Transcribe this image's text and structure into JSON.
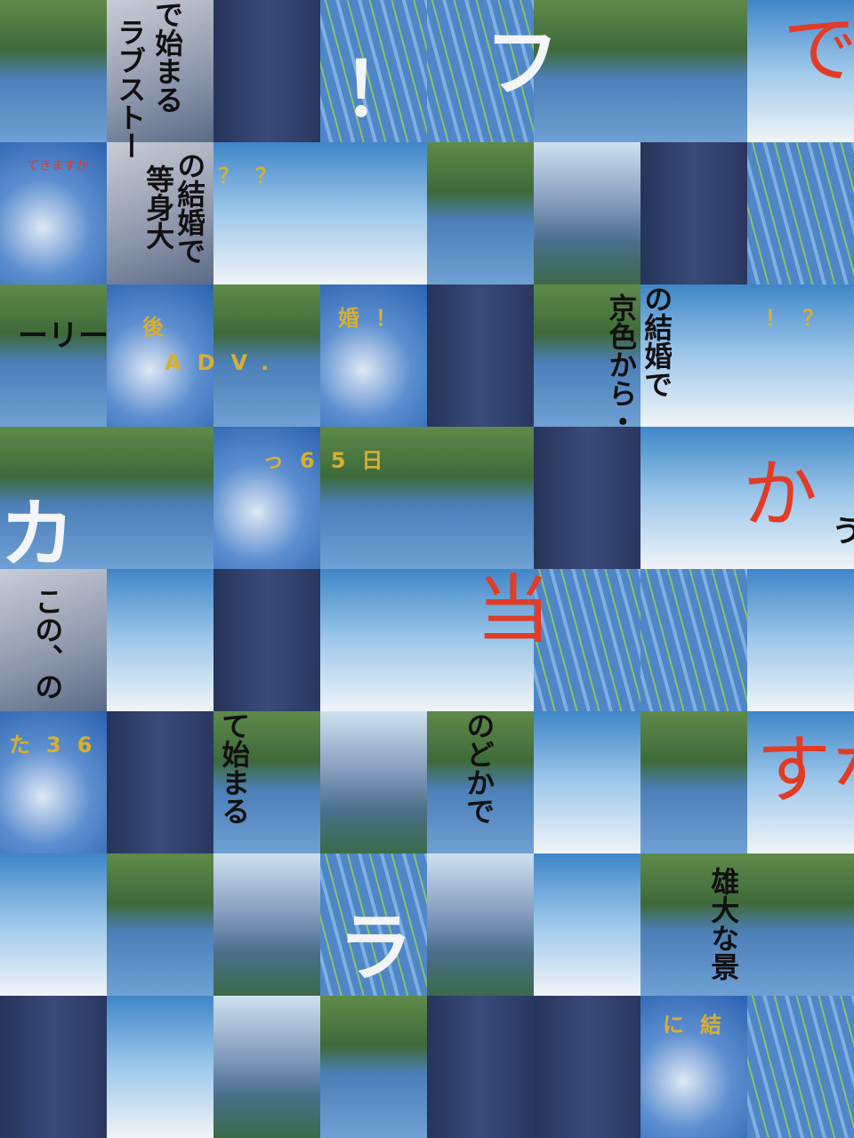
{
  "puzzle": {
    "pieces": [
      "で始まる",
      "ラブストー",
      "！",
      "フ",
      "で",
      "てきますか",
      "等身大",
      "の結婚で",
      "？？",
      "ーリー",
      "後",
      "ADV.",
      "婚！",
      "の結婚で",
      "京色から・",
      "！？",
      "カ",
      "っ65日",
      "か",
      "う",
      "この、の",
      "当",
      "た36",
      "て始まる",
      "のどかで",
      "すな",
      "ラ",
      "雄大な景",
      "に結"
    ]
  }
}
